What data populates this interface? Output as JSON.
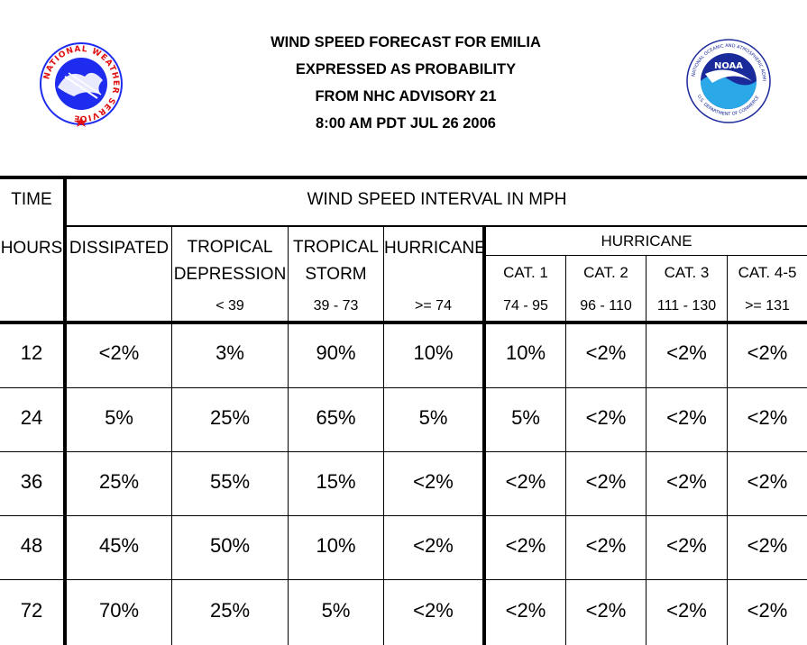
{
  "title": {
    "line1": "WIND SPEED FORECAST FOR EMILIA",
    "line2": "EXPRESSED AS PROBABILITY",
    "line3": "FROM NHC ADVISORY   21",
    "line4": "8:00 AM PDT JUL 26 2006"
  },
  "logos": {
    "left": {
      "text": "NATIONAL WEATHER SERVICE"
    },
    "right": {
      "label": "NOAA",
      "ring_text": "NATIONAL OCEANIC AND ATMOSPHERIC ADMINISTRATION",
      "bottom_text": "U.S. DEPARTMENT OF COMMERCE"
    }
  },
  "colors": {
    "nws_blue": "#1e2cf0",
    "noaa_blue": "#2aa8e8",
    "noaa_dark": "#1a2a9a",
    "nws_red": "#e01010"
  },
  "header": {
    "time": "TIME",
    "interval": "WIND SPEED INTERVAL IN MPH",
    "hours": "HOURS",
    "dissipated": "DISSIPATED",
    "td_line1": "TROPICAL",
    "td_line2": "DEPRESSION",
    "td_range": "< 39",
    "ts_line1": "TROPICAL",
    "ts_line2": "STORM",
    "ts_range": "39 - 73",
    "hurricane": "HURRICANE",
    "hurricane_range": ">= 74",
    "hurricane_group": "HURRICANE",
    "cat1": "CAT. 1",
    "cat1_range": "74 - 95",
    "cat2": "CAT. 2",
    "cat2_range": "96 - 110",
    "cat3": "CAT. 3",
    "cat3_range": "111 - 130",
    "cat45": "CAT. 4-5",
    "cat45_range": ">= 131"
  },
  "rows": [
    {
      "hours": "12",
      "values": [
        "<2%",
        "3%",
        "90%",
        "10%",
        "10%",
        "<2%",
        "<2%",
        "<2%"
      ]
    },
    {
      "hours": "24",
      "values": [
        "5%",
        "25%",
        "65%",
        "5%",
        "5%",
        "<2%",
        "<2%",
        "<2%"
      ]
    },
    {
      "hours": "36",
      "values": [
        "25%",
        "55%",
        "15%",
        "<2%",
        "<2%",
        "<2%",
        "<2%",
        "<2%"
      ]
    },
    {
      "hours": "48",
      "values": [
        "45%",
        "50%",
        "10%",
        "<2%",
        "<2%",
        "<2%",
        "<2%",
        "<2%"
      ]
    },
    {
      "hours": "72",
      "values": [
        "70%",
        "25%",
        "5%",
        "<2%",
        "<2%",
        "<2%",
        "<2%",
        "<2%"
      ]
    }
  ]
}
